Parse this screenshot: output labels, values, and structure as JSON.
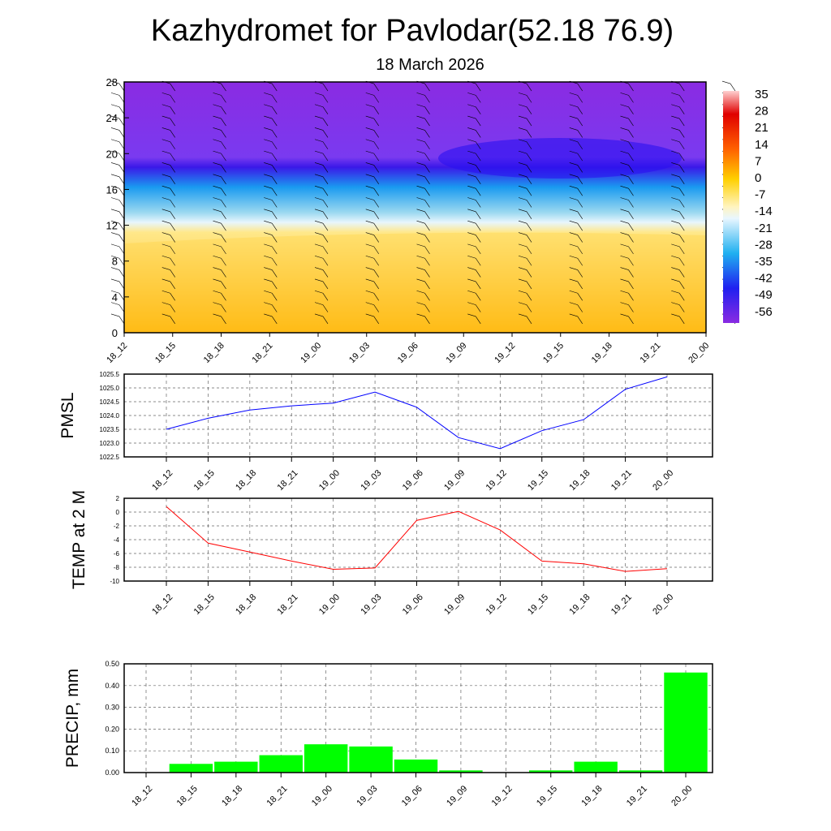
{
  "title": "Kazhydromet for Pavlodar(52.18 76.9)",
  "subtitle": "18 March 2026",
  "chart_data": [
    {
      "type": "heatmap",
      "name": "vertical-section",
      "ylim": [
        0,
        28
      ],
      "yticks": [
        0,
        4,
        8,
        12,
        16,
        20,
        24,
        28
      ],
      "categories": [
        "18_12",
        "18_15",
        "18_18",
        "18_21",
        "19_00",
        "19_03",
        "19_06",
        "19_09",
        "19_12",
        "19_15",
        "19_18",
        "19_21",
        "20_00"
      ],
      "colorbar": {
        "labels": [
          "35",
          "28",
          "21",
          "14",
          "7",
          "0",
          "-7",
          "-14",
          "-21",
          "-28",
          "-35",
          "-42",
          "-49",
          "-56"
        ]
      }
    },
    {
      "type": "line",
      "ylabel": "PMSL",
      "ylim": [
        1022.5,
        1025.5
      ],
      "yticks": [
        "1022.5",
        "1023.0",
        "1023.5",
        "1024.0",
        "1024.5",
        "1025.0",
        "1025.5"
      ],
      "categories": [
        "18_12",
        "18_15",
        "18_18",
        "18_21",
        "19_00",
        "19_03",
        "19_06",
        "19_09",
        "19_12",
        "19_15",
        "19_18",
        "19_21",
        "20_00"
      ],
      "values": [
        1023.5,
        1023.9,
        1024.2,
        1024.35,
        1024.45,
        1024.85,
        1024.3,
        1023.2,
        1022.8,
        1023.45,
        1023.85,
        1024.95,
        1025.4
      ],
      "color": "#0000ff"
    },
    {
      "type": "line",
      "ylabel": "TEMP at 2 M",
      "ylim": [
        -10,
        2
      ],
      "yticks": [
        "-10",
        "-8",
        "-6",
        "-4",
        "-2",
        "0",
        "2"
      ],
      "categories": [
        "18_12",
        "18_15",
        "18_18",
        "18_21",
        "19_00",
        "19_03",
        "19_06",
        "19_09",
        "19_12",
        "19_15",
        "19_18",
        "19_21",
        "20_00"
      ],
      "values": [
        0.8,
        -4.5,
        -5.8,
        -7.1,
        -8.3,
        -8.1,
        -1.2,
        0.1,
        -2.6,
        -7.1,
        -7.5,
        -8.6,
        -8.2
      ],
      "color": "#ff0000"
    },
    {
      "type": "bar",
      "ylabel": "PRECIP, mm",
      "ylim": [
        0,
        0.5
      ],
      "yticks": [
        "0.00",
        "0.10",
        "0.20",
        "0.30",
        "0.40",
        "0.50"
      ],
      "categories": [
        "18_12",
        "18_15",
        "18_18",
        "18_21",
        "19_00",
        "19_03",
        "19_06",
        "19_09",
        "19_12",
        "19_15",
        "19_18",
        "19_21",
        "20_00"
      ],
      "values": [
        0,
        0.04,
        0.05,
        0.08,
        0.13,
        0.12,
        0.06,
        0.01,
        0,
        0.01,
        0.05,
        0.01,
        0.46
      ],
      "color": "#00ff00"
    }
  ]
}
